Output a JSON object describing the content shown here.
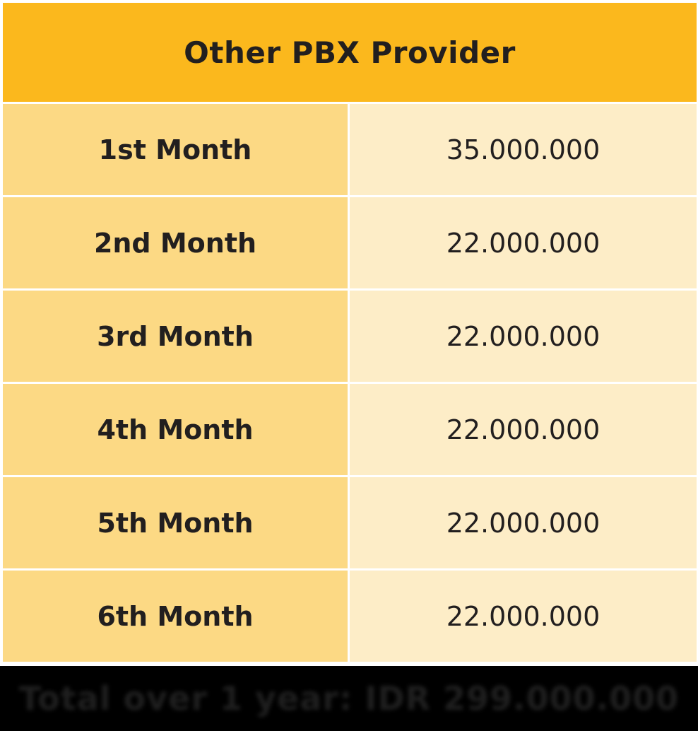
{
  "header": {
    "title": "Other PBX Provider"
  },
  "rows": [
    {
      "label": "1st Month",
      "value": "35.000.000"
    },
    {
      "label": "2nd Month",
      "value": "22.000.000"
    },
    {
      "label": "3rd Month",
      "value": "22.000.000"
    },
    {
      "label": "4th Month",
      "value": "22.000.000"
    },
    {
      "label": "5th Month",
      "value": "22.000.000"
    },
    {
      "label": "6th Month",
      "value": "22.000.000"
    }
  ],
  "footer": {
    "total_text": "Total over 1 year: IDR 299.000.000"
  },
  "colors": {
    "header_bg": "#FBB81D",
    "label_bg": "#FCD984",
    "value_bg": "#FDEDC7",
    "text": "#221F1F",
    "footer_bg": "#000000"
  }
}
